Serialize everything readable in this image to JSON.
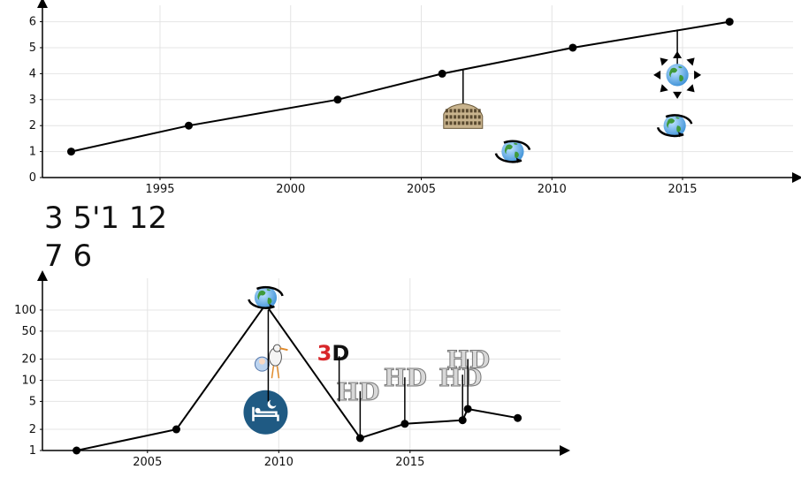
{
  "caption_lines": [
    "3 5'1 12",
    "7 6"
  ],
  "chart_data": [
    {
      "type": "line",
      "x": [
        1991.6,
        1996.1,
        2001.8,
        2005.8,
        2010.8,
        2016.8
      ],
      "values": [
        1,
        2,
        3,
        4,
        5,
        6
      ],
      "xlim": [
        1990.5,
        2019.5
      ],
      "ylim": [
        0,
        6.7
      ],
      "xticks": [
        1995,
        2000,
        2005,
        2010,
        2015
      ],
      "yticks": [
        0,
        1,
        2,
        3,
        4,
        5,
        6
      ],
      "grid": true,
      "icon_markers": [
        {
          "icon": "colosseum-icon",
          "x": 2006.6,
          "anchor_y": 4.14,
          "y": 2.3
        },
        {
          "icon": "globe-rotate-icon",
          "x": 2008.5,
          "y": 1.0
        },
        {
          "icon": "globe-rotate-icon",
          "x": 2014.7,
          "y": 2.0
        },
        {
          "icon": "globe-expand-icon",
          "x": 2014.8,
          "anchor_y": 5.7,
          "y": 3.95
        }
      ]
    },
    {
      "type": "line",
      "x": [
        2002.3,
        2006.1,
        2009.5,
        2013.1,
        2014.8,
        2017.0,
        2017.2,
        2019.1
      ],
      "values": [
        1,
        2,
        120,
        1.5,
        2.4,
        2.7,
        3.9,
        2.9
      ],
      "xlim": [
        2001.0,
        2021.0
      ],
      "ylim": [
        1,
        300
      ],
      "yscale": "log",
      "xticks": [
        2005,
        2010,
        2015
      ],
      "yticks": [
        1,
        2,
        5,
        10,
        20,
        50,
        100
      ],
      "grid": true,
      "icon_markers": [
        {
          "icon": "globe-rotate-icon",
          "x": 2009.5,
          "y": 150
        },
        {
          "icon": "stork-baby-icon",
          "x": 2009.6,
          "y": 18
        },
        {
          "icon": "sleep-bed-icon",
          "x": 2009.5,
          "y": 3.5
        },
        {
          "icon": "3d-icon",
          "x": 2012.3,
          "y": 25
        },
        {
          "icon": "hd-icon",
          "x": 2013.0,
          "y": 7
        },
        {
          "icon": "hd-icon",
          "x": 2014.8,
          "y": 11
        },
        {
          "icon": "hd-icon",
          "x": 2016.9,
          "y": 11
        },
        {
          "icon": "hd-icon",
          "x": 2017.2,
          "y": 20
        }
      ]
    }
  ]
}
